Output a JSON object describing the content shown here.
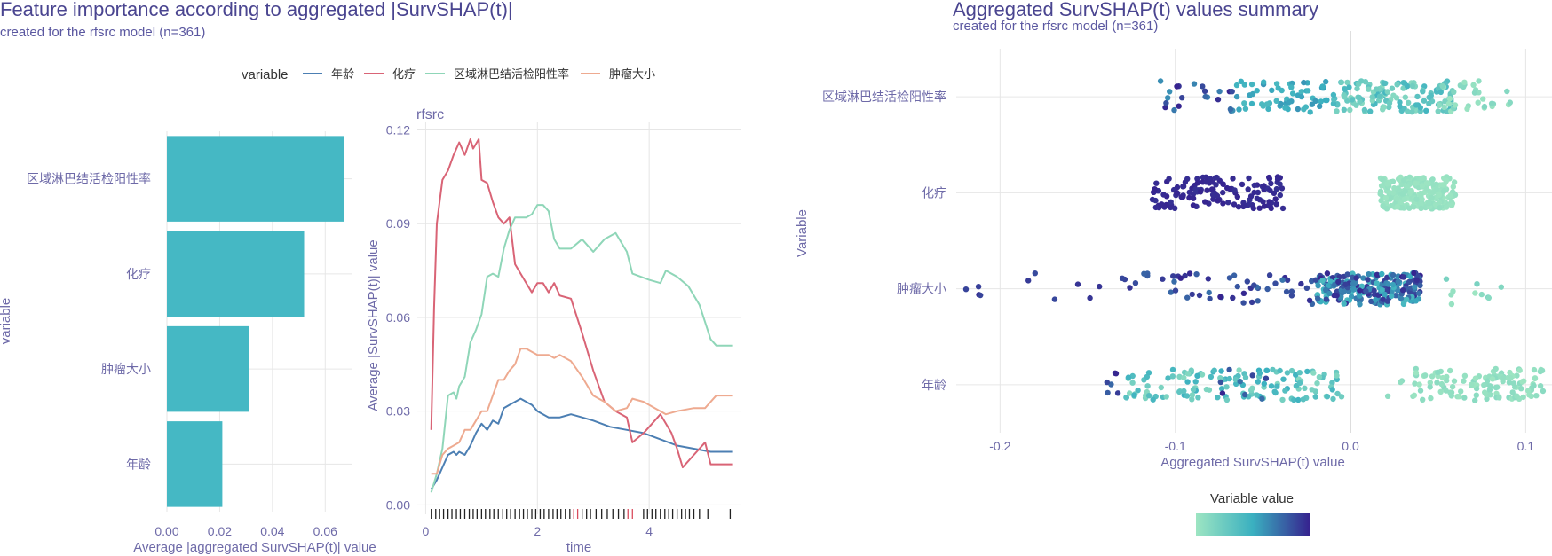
{
  "colors": {
    "title": "#4a4590",
    "subtitle": "#5a57a0",
    "axis_text": "#6e6aa8",
    "legend_text": "#333333",
    "grid": "#e6e6e6",
    "bar": "#45b8c4",
    "series": [
      "#4c7fb3",
      "#d96476",
      "#8fd6b8",
      "#eeaa90"
    ],
    "gradient_low": "#9de5c2",
    "gradient_mid": "#3ab0c0",
    "gradient_high": "#36238f",
    "zero_line": "#cccccc",
    "rug": "#222222",
    "rug_highlight": "#d94c5e"
  },
  "left_panel": {
    "title": "Feature importance according to aggregated |SurvSHAP(t)|",
    "subtitle": "created for the rfsrc model (n=361)",
    "legend_title": "variable",
    "legend_items": [
      "年龄",
      "化疗",
      "区域淋巴结活检阳性率",
      "肿瘤大小"
    ]
  },
  "right_panel": {
    "title": "Aggregated SurvSHAP(t) values summary",
    "subtitle": "created for the rfsrc model (n=361)",
    "colorbar_title": "Variable value"
  },
  "chart_data": [
    {
      "type": "bar",
      "orientation": "horizontal",
      "categories": [
        "区域淋巴结活检阳性率",
        "化疗",
        "肿瘤大小",
        "年龄"
      ],
      "values": [
        0.067,
        0.052,
        0.031,
        0.021
      ],
      "xlabel": "Average |aggregated SurvSHAP(t)| value",
      "ylabel": "variable",
      "xlim": [
        0,
        0.07
      ],
      "x_ticks": [
        "0.00",
        "0.02",
        "0.04",
        "0.06"
      ],
      "x_tick_values": [
        0,
        0.02,
        0.04,
        0.06
      ]
    },
    {
      "type": "line",
      "title": "rfsrc",
      "xlabel": "time",
      "ylabel": "Average |SurvSHAP(t)| value",
      "xlim": [
        -0.15,
        5.65
      ],
      "ylim": [
        -0.003,
        0.1224
      ],
      "x_ticks": [
        "0",
        "2",
        "4"
      ],
      "x_tick_values": [
        0,
        2,
        4
      ],
      "y_ticks": [
        "0.00",
        "0.03",
        "0.06",
        "0.09",
        "0.12"
      ],
      "y_tick_values": [
        0,
        0.03,
        0.06,
        0.09,
        0.12
      ],
      "series": [
        {
          "name": "年龄",
          "points": [
            [
              0.1,
              0.005
            ],
            [
              0.2,
              0.008
            ],
            [
              0.3,
              0.012
            ],
            [
              0.4,
              0.016
            ],
            [
              0.5,
              0.017
            ],
            [
              0.55,
              0.016
            ],
            [
              0.6,
              0.017
            ],
            [
              0.7,
              0.016
            ],
            [
              0.8,
              0.019
            ],
            [
              0.9,
              0.023
            ],
            [
              1.0,
              0.026
            ],
            [
              1.1,
              0.024
            ],
            [
              1.2,
              0.027
            ],
            [
              1.3,
              0.026
            ],
            [
              1.4,
              0.031
            ],
            [
              1.5,
              0.032
            ],
            [
              1.6,
              0.033
            ],
            [
              1.7,
              0.034
            ],
            [
              1.8,
              0.033
            ],
            [
              1.9,
              0.032
            ],
            [
              2.0,
              0.03
            ],
            [
              2.2,
              0.028
            ],
            [
              2.4,
              0.028
            ],
            [
              2.6,
              0.029
            ],
            [
              2.8,
              0.028
            ],
            [
              3.0,
              0.027
            ],
            [
              3.3,
              0.025
            ],
            [
              3.6,
              0.024
            ],
            [
              3.9,
              0.023
            ],
            [
              4.2,
              0.021
            ],
            [
              4.5,
              0.019
            ],
            [
              4.8,
              0.018
            ],
            [
              5.1,
              0.017
            ],
            [
              5.5,
              0.017
            ]
          ]
        },
        {
          "name": "化疗",
          "points": [
            [
              0.1,
              0.024
            ],
            [
              0.15,
              0.063
            ],
            [
              0.2,
              0.09
            ],
            [
              0.3,
              0.104
            ],
            [
              0.4,
              0.107
            ],
            [
              0.5,
              0.112
            ],
            [
              0.6,
              0.116
            ],
            [
              0.7,
              0.112
            ],
            [
              0.8,
              0.117
            ],
            [
              0.85,
              0.114
            ],
            [
              0.95,
              0.117
            ],
            [
              1.0,
              0.104
            ],
            [
              1.1,
              0.103
            ],
            [
              1.2,
              0.097
            ],
            [
              1.3,
              0.092
            ],
            [
              1.4,
              0.09
            ],
            [
              1.5,
              0.092
            ],
            [
              1.6,
              0.077
            ],
            [
              1.7,
              0.074
            ],
            [
              1.8,
              0.071
            ],
            [
              1.9,
              0.068
            ],
            [
              2.0,
              0.071
            ],
            [
              2.1,
              0.071
            ],
            [
              2.2,
              0.068
            ],
            [
              2.3,
              0.071
            ],
            [
              2.4,
              0.067
            ],
            [
              2.6,
              0.066
            ],
            [
              2.8,
              0.055
            ],
            [
              3.0,
              0.043
            ],
            [
              3.2,
              0.033
            ],
            [
              3.4,
              0.03
            ],
            [
              3.6,
              0.028
            ],
            [
              3.7,
              0.02
            ],
            [
              3.9,
              0.023
            ],
            [
              4.2,
              0.029
            ],
            [
              4.4,
              0.023
            ],
            [
              4.5,
              0.018
            ],
            [
              4.6,
              0.012
            ],
            [
              4.8,
              0.016
            ],
            [
              5.0,
              0.02
            ],
            [
              5.1,
              0.013
            ],
            [
              5.5,
              0.013
            ]
          ]
        },
        {
          "name": "区域淋巴结活检阳性率",
          "points": [
            [
              0.1,
              0.004
            ],
            [
              0.2,
              0.01
            ],
            [
              0.3,
              0.018
            ],
            [
              0.4,
              0.035
            ],
            [
              0.5,
              0.036
            ],
            [
              0.55,
              0.034
            ],
            [
              0.6,
              0.038
            ],
            [
              0.7,
              0.041
            ],
            [
              0.8,
              0.052
            ],
            [
              0.9,
              0.056
            ],
            [
              1.0,
              0.061
            ],
            [
              1.1,
              0.073
            ],
            [
              1.2,
              0.074
            ],
            [
              1.3,
              0.073
            ],
            [
              1.4,
              0.082
            ],
            [
              1.5,
              0.088
            ],
            [
              1.6,
              0.092
            ],
            [
              1.7,
              0.092
            ],
            [
              1.8,
              0.092
            ],
            [
              1.9,
              0.093
            ],
            [
              2.0,
              0.096
            ],
            [
              2.1,
              0.096
            ],
            [
              2.2,
              0.094
            ],
            [
              2.3,
              0.085
            ],
            [
              2.4,
              0.082
            ],
            [
              2.6,
              0.082
            ],
            [
              2.8,
              0.085
            ],
            [
              3.0,
              0.081
            ],
            [
              3.2,
              0.085
            ],
            [
              3.4,
              0.087
            ],
            [
              3.6,
              0.081
            ],
            [
              3.7,
              0.074
            ],
            [
              4.0,
              0.072
            ],
            [
              4.2,
              0.071
            ],
            [
              4.3,
              0.075
            ],
            [
              4.5,
              0.073
            ],
            [
              4.7,
              0.07
            ],
            [
              4.9,
              0.064
            ],
            [
              5.1,
              0.053
            ],
            [
              5.2,
              0.051
            ],
            [
              5.5,
              0.051
            ]
          ]
        },
        {
          "name": "肿瘤大小",
          "points": [
            [
              0.1,
              0.01
            ],
            [
              0.2,
              0.01
            ],
            [
              0.3,
              0.016
            ],
            [
              0.4,
              0.018
            ],
            [
              0.5,
              0.019
            ],
            [
              0.6,
              0.02
            ],
            [
              0.7,
              0.024
            ],
            [
              0.8,
              0.024
            ],
            [
              0.9,
              0.027
            ],
            [
              1.0,
              0.03
            ],
            [
              1.1,
              0.03
            ],
            [
              1.2,
              0.035
            ],
            [
              1.3,
              0.04
            ],
            [
              1.4,
              0.04
            ],
            [
              1.5,
              0.043
            ],
            [
              1.6,
              0.045
            ],
            [
              1.7,
              0.05
            ],
            [
              1.8,
              0.05
            ],
            [
              1.9,
              0.049
            ],
            [
              2.0,
              0.048
            ],
            [
              2.2,
              0.048
            ],
            [
              2.3,
              0.047
            ],
            [
              2.4,
              0.048
            ],
            [
              2.6,
              0.046
            ],
            [
              2.8,
              0.041
            ],
            [
              3.0,
              0.035
            ],
            [
              3.2,
              0.033
            ],
            [
              3.4,
              0.03
            ],
            [
              3.6,
              0.031
            ],
            [
              3.7,
              0.034
            ],
            [
              3.9,
              0.033
            ],
            [
              4.1,
              0.031
            ],
            [
              4.3,
              0.029
            ],
            [
              4.5,
              0.03
            ],
            [
              4.8,
              0.031
            ],
            [
              5.0,
              0.031
            ],
            [
              5.2,
              0.035
            ],
            [
              5.5,
              0.035
            ]
          ]
        }
      ],
      "rug_times": [
        0.1,
        0.18,
        0.25,
        0.32,
        0.4,
        0.47,
        0.55,
        0.62,
        0.7,
        0.78,
        0.85,
        0.92,
        1.0,
        1.07,
        1.15,
        1.22,
        1.3,
        1.38,
        1.45,
        1.52,
        1.6,
        1.68,
        1.75,
        1.82,
        1.9,
        1.97,
        2.05,
        2.12,
        2.2,
        2.28,
        2.35,
        2.42,
        2.5,
        2.58,
        2.65,
        2.72,
        2.8,
        2.88,
        2.95,
        3.05,
        3.15,
        3.25,
        3.35,
        3.45,
        3.55,
        3.62,
        3.7,
        3.9,
        3.97,
        4.05,
        4.12,
        4.2,
        4.28,
        4.35,
        4.42,
        4.5,
        4.58,
        4.65,
        4.72,
        4.8,
        4.9,
        5.05,
        5.45
      ],
      "rug_highlight": [
        2.65,
        2.72,
        3.62,
        3.7
      ]
    },
    {
      "type": "scatter",
      "title": "Aggregated SurvSHAP(t) values summary",
      "xlabel": "Aggregated SurvSHAP(t) value",
      "ylabel": "Variable",
      "xlim": [
        -0.225,
        0.115
      ],
      "x_ticks": [
        "-0.2",
        "-0.1",
        "0.0",
        "0.1"
      ],
      "x_tick_values": [
        -0.2,
        -0.1,
        0,
        0.1
      ],
      "categories": [
        "区域淋巴结活检阳性率",
        "化疗",
        "肿瘤大小",
        "年龄"
      ],
      "groups": [
        {
          "name": "区域淋巴结活检阳性率",
          "clusters": [
            {
              "min": -0.11,
              "max": -0.065,
              "n": 22,
              "c_min": 0.6,
              "c_max": 1.0
            },
            {
              "min": -0.065,
              "max": -0.01,
              "n": 60,
              "c_min": 0.4,
              "c_max": 0.6
            },
            {
              "min": -0.01,
              "max": 0.06,
              "n": 140,
              "c_min": 0.1,
              "c_max": 0.45
            },
            {
              "min": 0.05,
              "max": 0.095,
              "n": 30,
              "c_min": 0.0,
              "c_max": 0.15
            }
          ]
        },
        {
          "name": "化疗",
          "clusters": [
            {
              "min": -0.113,
              "max": -0.038,
              "n": 130,
              "c_min": 0.95,
              "c_max": 1.0
            },
            {
              "min": 0.017,
              "max": 0.06,
              "n": 230,
              "c_min": 0.0,
              "c_max": 0.05
            }
          ]
        },
        {
          "name": "肿瘤大小",
          "clusters": [
            {
              "min": -0.22,
              "max": -0.12,
              "n": 14,
              "c_min": 0.85,
              "c_max": 1.0
            },
            {
              "min": -0.12,
              "max": -0.02,
              "n": 48,
              "c_min": 0.7,
              "c_max": 1.0
            },
            {
              "min": -0.02,
              "max": 0.04,
              "n": 240,
              "c_min": 0.4,
              "c_max": 1.0
            },
            {
              "min": 0.05,
              "max": 0.09,
              "n": 10,
              "c_min": 0.0,
              "c_max": 0.2
            }
          ]
        },
        {
          "name": "年龄",
          "clusters": [
            {
              "min": -0.14,
              "max": -0.13,
              "n": 6,
              "c_min": 0.75,
              "c_max": 1.0
            },
            {
              "min": -0.13,
              "max": -0.005,
              "n": 140,
              "c_min": 0.1,
              "c_max": 0.5
            },
            {
              "min": -0.08,
              "max": -0.04,
              "n": 8,
              "c_min": 0.7,
              "c_max": 1.0
            },
            {
              "min": 0.035,
              "max": 0.11,
              "n": 120,
              "c_min": 0.0,
              "c_max": 0.1
            },
            {
              "min": 0.015,
              "max": 0.035,
              "n": 3,
              "c_min": 0.0,
              "c_max": 0.1
            }
          ]
        }
      ],
      "legend_title": "Variable value"
    }
  ]
}
